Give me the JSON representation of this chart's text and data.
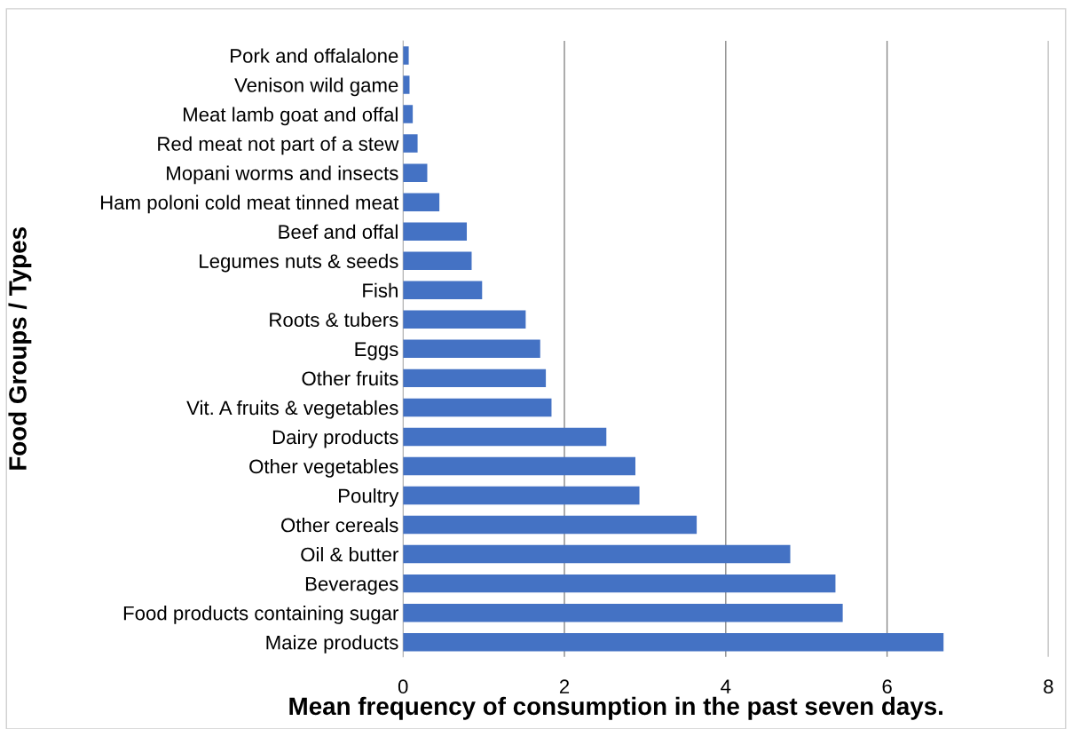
{
  "chart_data": {
    "type": "bar",
    "orientation": "horizontal",
    "xlabel": "Mean frequency of consumption in the past seven days.",
    "ylabel": "Food Groups / Types",
    "categories": [
      "Pork and offalalone",
      "Venison wild game",
      "Meat lamb goat and offal",
      "Red meat not part of a stew",
      "Mopani worms and insects",
      "Ham poloni cold meat tinned meat",
      "Beef and offal",
      "Legumes nuts & seeds",
      "Fish",
      "Roots & tubers",
      "Eggs",
      "Other fruits",
      "Vit. A fruits & vegetables",
      "Dairy products",
      "Other vegetables",
      "Poultry",
      "Other cereals",
      "Oil & butter",
      "Beverages",
      "Food products containing sugar",
      "Maize products"
    ],
    "values": [
      0.07,
      0.08,
      0.12,
      0.18,
      0.3,
      0.45,
      0.79,
      0.85,
      0.98,
      1.52,
      1.7,
      1.77,
      1.84,
      2.52,
      2.88,
      2.93,
      3.64,
      4.8,
      5.36,
      5.45,
      6.7
    ],
    "color": "#4472c4",
    "xlim": [
      0,
      8
    ],
    "xticks": [
      0,
      2,
      4,
      6,
      8
    ],
    "grid": "x",
    "legend": false
  }
}
